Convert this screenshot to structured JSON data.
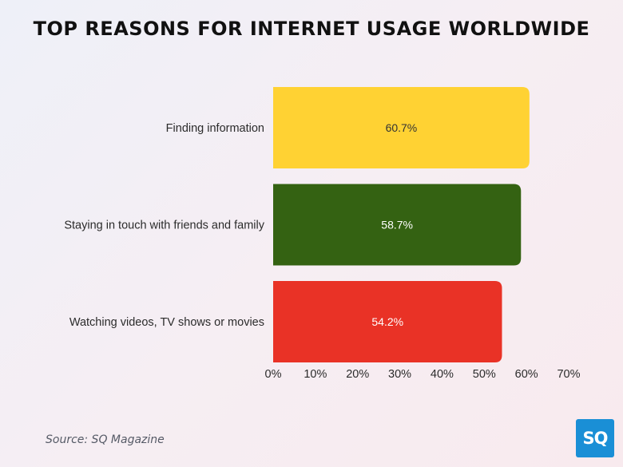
{
  "title": "TOP REASONS FOR INTERNET USAGE WORLDWIDE",
  "source": "Source: SQ Magazine",
  "logo_text": "SQ",
  "chart_data": {
    "type": "bar",
    "orientation": "horizontal",
    "categories": [
      "Finding information",
      "Staying in touch with friends and family",
      "Watching videos, TV shows or movies"
    ],
    "values": [
      60.7,
      58.7,
      54.2
    ],
    "data_labels": [
      "60.7%",
      "58.7%",
      "54.2%"
    ],
    "colors": [
      "#ffd233",
      "#346212",
      "#e93226"
    ],
    "label_colors": [
      "#333333",
      "#ffffff",
      "#ffffff"
    ],
    "xlim": [
      0,
      70
    ],
    "xticks": [
      "0%",
      "10%",
      "20%",
      "30%",
      "40%",
      "50%",
      "60%",
      "70%"
    ],
    "grid": false,
    "title": "TOP REASONS FOR INTERNET USAGE WORLDWIDE"
  }
}
